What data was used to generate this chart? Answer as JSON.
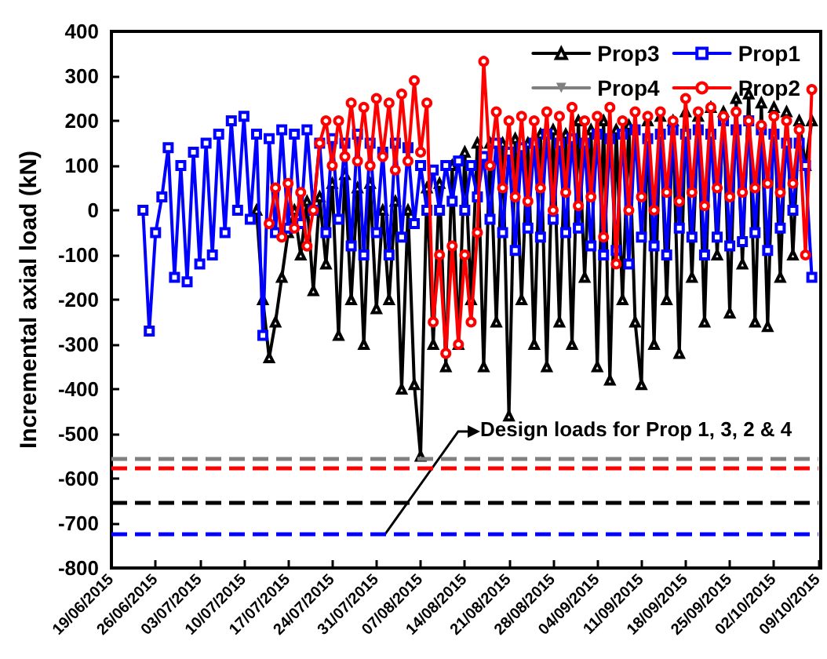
{
  "chart_data": {
    "type": "line",
    "ylabel": "Incremental axial load (kN)",
    "xlim": [
      "2015-06-19",
      "2015-10-09"
    ],
    "xticks": [
      {
        "value": "2015-06-19",
        "label": "19/06/2015"
      },
      {
        "value": "2015-06-26",
        "label": "26/06/2015"
      },
      {
        "value": "2015-07-03",
        "label": "03/07/2015"
      },
      {
        "value": "2015-07-10",
        "label": "10/07/2015"
      },
      {
        "value": "2015-07-17",
        "label": "17/07/2015"
      },
      {
        "value": "2015-07-24",
        "label": "24/07/2015"
      },
      {
        "value": "2015-07-31",
        "label": "31/07/2015"
      },
      {
        "value": "2015-08-07",
        "label": "07/08/2015"
      },
      {
        "value": "2015-08-14",
        "label": "14/08/2015"
      },
      {
        "value": "2015-08-21",
        "label": "21/08/2015"
      },
      {
        "value": "2015-08-28",
        "label": "28/08/2015"
      },
      {
        "value": "2015-09-04",
        "label": "04/09/2015"
      },
      {
        "value": "2015-09-11",
        "label": "11/09/2015"
      },
      {
        "value": "2015-09-18",
        "label": "18/09/2015"
      },
      {
        "value": "2015-09-25",
        "label": "25/09/2015"
      },
      {
        "value": "2015-10-02",
        "label": "02/10/2015"
      },
      {
        "value": "2015-10-09",
        "label": "09/10/2015"
      }
    ],
    "ylim": [
      -800,
      400
    ],
    "yticks": [
      -800,
      -700,
      -600,
      -500,
      -400,
      -300,
      -200,
      -100,
      0,
      100,
      200,
      300,
      400
    ],
    "grid": false,
    "legend": "top right",
    "line_style": "solid",
    "series": [
      {
        "name": "Prop3",
        "color": "#000000",
        "marker": "triangle",
        "x": [
          "2015-07-12",
          "2015-07-13",
          "2015-07-14",
          "2015-07-15",
          "2015-07-16",
          "2015-07-17",
          "2015-07-18",
          "2015-07-19",
          "2015-07-20",
          "2015-07-21",
          "2015-07-22",
          "2015-07-23",
          "2015-07-24",
          "2015-07-25",
          "2015-07-26",
          "2015-07-27",
          "2015-07-28",
          "2015-07-29",
          "2015-07-30",
          "2015-07-31",
          "2015-08-01",
          "2015-08-02",
          "2015-08-03",
          "2015-08-04",
          "2015-08-05",
          "2015-08-06",
          "2015-08-07",
          "2015-08-08",
          "2015-08-09",
          "2015-08-10",
          "2015-08-11",
          "2015-08-12",
          "2015-08-13",
          "2015-08-14",
          "2015-08-15",
          "2015-08-16",
          "2015-08-17",
          "2015-08-18",
          "2015-08-19",
          "2015-08-20",
          "2015-08-21",
          "2015-08-22",
          "2015-08-23",
          "2015-08-24",
          "2015-08-25",
          "2015-08-26",
          "2015-08-27",
          "2015-08-28",
          "2015-08-29",
          "2015-08-30",
          "2015-08-31",
          "2015-09-01",
          "2015-09-02",
          "2015-09-03",
          "2015-09-04",
          "2015-09-05",
          "2015-09-06",
          "2015-09-07",
          "2015-09-08",
          "2015-09-09",
          "2015-09-10",
          "2015-09-11",
          "2015-09-12",
          "2015-09-13",
          "2015-09-14",
          "2015-09-15",
          "2015-09-16",
          "2015-09-17",
          "2015-09-18",
          "2015-09-19",
          "2015-09-20",
          "2015-09-21",
          "2015-09-22",
          "2015-09-23",
          "2015-09-24",
          "2015-09-25",
          "2015-09-26",
          "2015-09-27",
          "2015-09-28",
          "2015-09-29",
          "2015-09-30",
          "2015-10-01",
          "2015-10-02",
          "2015-10-03",
          "2015-10-04",
          "2015-10-05",
          "2015-10-06",
          "2015-10-07",
          "2015-10-08"
        ],
        "values": [
          0,
          -200,
          -330,
          -250,
          -150,
          -50,
          0,
          -100,
          20,
          -180,
          30,
          -120,
          60,
          -280,
          80,
          -200,
          50,
          -300,
          60,
          -220,
          0,
          -200,
          20,
          -400,
          0,
          -390,
          -550,
          50,
          -300,
          60,
          -350,
          100,
          -300,
          130,
          -200,
          150,
          -350,
          150,
          -250,
          150,
          -460,
          160,
          -200,
          150,
          -300,
          170,
          -350,
          180,
          -250,
          170,
          -300,
          200,
          -150,
          180,
          -350,
          200,
          -380,
          180,
          -200,
          190,
          -250,
          -390,
          200,
          -300,
          210,
          -200,
          200,
          -320,
          220,
          -150,
          210,
          -250,
          230,
          -100,
          220,
          -230,
          250,
          -120,
          260,
          -250,
          240,
          -260,
          230,
          -150,
          220,
          -100,
          200,
          100,
          200
        ]
      },
      {
        "name": "Prop1",
        "color": "#0000ff",
        "marker": "square",
        "x": [
          "2015-06-24",
          "2015-06-25",
          "2015-06-26",
          "2015-06-27",
          "2015-06-28",
          "2015-06-29",
          "2015-06-30",
          "2015-07-01",
          "2015-07-02",
          "2015-07-03",
          "2015-07-04",
          "2015-07-05",
          "2015-07-06",
          "2015-07-07",
          "2015-07-08",
          "2015-07-09",
          "2015-07-10",
          "2015-07-11",
          "2015-07-12",
          "2015-07-13",
          "2015-07-14",
          "2015-07-15",
          "2015-07-16",
          "2015-07-17",
          "2015-07-18",
          "2015-07-19",
          "2015-07-20",
          "2015-07-21",
          "2015-07-22",
          "2015-07-23",
          "2015-07-24",
          "2015-07-25",
          "2015-07-26",
          "2015-07-27",
          "2015-07-28",
          "2015-07-29",
          "2015-07-30",
          "2015-07-31",
          "2015-08-01",
          "2015-08-02",
          "2015-08-03",
          "2015-08-04",
          "2015-08-05",
          "2015-08-06",
          "2015-08-07",
          "2015-08-08",
          "2015-08-09",
          "2015-08-10",
          "2015-08-11",
          "2015-08-12",
          "2015-08-13",
          "2015-08-14",
          "2015-08-15",
          "2015-08-16",
          "2015-08-17",
          "2015-08-18",
          "2015-08-19",
          "2015-08-20",
          "2015-08-21",
          "2015-08-22",
          "2015-08-23",
          "2015-08-24",
          "2015-08-25",
          "2015-08-26",
          "2015-08-27",
          "2015-08-28",
          "2015-08-29",
          "2015-08-30",
          "2015-08-31",
          "2015-09-01",
          "2015-09-02",
          "2015-09-03",
          "2015-09-04",
          "2015-09-05",
          "2015-09-06",
          "2015-09-07",
          "2015-09-08",
          "2015-09-09",
          "2015-09-10",
          "2015-09-11",
          "2015-09-12",
          "2015-09-13",
          "2015-09-14",
          "2015-09-15",
          "2015-09-16",
          "2015-09-17",
          "2015-09-18",
          "2015-09-19",
          "2015-09-20",
          "2015-09-21",
          "2015-09-22",
          "2015-09-23",
          "2015-09-24",
          "2015-09-25",
          "2015-09-26",
          "2015-09-27",
          "2015-09-28",
          "2015-09-29",
          "2015-09-30",
          "2015-10-01",
          "2015-10-02",
          "2015-10-03",
          "2015-10-04",
          "2015-10-05",
          "2015-10-06",
          "2015-10-07",
          "2015-10-08"
        ],
        "values": [
          0,
          -270,
          -50,
          30,
          140,
          -150,
          100,
          -160,
          130,
          -120,
          150,
          -100,
          170,
          -50,
          200,
          0,
          210,
          -20,
          170,
          -280,
          160,
          -50,
          180,
          -40,
          170,
          -30,
          180,
          0,
          150,
          -50,
          160,
          -20,
          150,
          -80,
          170,
          -100,
          150,
          -50,
          130,
          -100,
          150,
          -60,
          140,
          -30,
          100,
          0,
          90,
          0,
          100,
          20,
          110,
          0,
          100,
          30,
          120,
          -20,
          150,
          -50,
          130,
          -90,
          140,
          -40,
          150,
          -60,
          170,
          -20,
          150,
          -50,
          160,
          -40,
          150,
          -80,
          170,
          -100,
          160,
          -90,
          170,
          -120,
          180,
          -60,
          160,
          -80,
          170,
          -100,
          180,
          -40,
          170,
          -60,
          180,
          -100,
          170,
          -60,
          200,
          -80,
          180,
          -70,
          200,
          -50,
          180,
          -90,
          170,
          -40,
          150,
          0,
          150,
          100,
          -150
        ]
      },
      {
        "name": "Prop4",
        "color": "#808080",
        "marker": "triangle-down"
      },
      {
        "name": "Prop2",
        "color": "#ff0000",
        "marker": "circle",
        "x": [
          "2015-07-14",
          "2015-07-15",
          "2015-07-16",
          "2015-07-17",
          "2015-07-18",
          "2015-07-19",
          "2015-07-20",
          "2015-07-21",
          "2015-07-22",
          "2015-07-23",
          "2015-07-24",
          "2015-07-25",
          "2015-07-26",
          "2015-07-27",
          "2015-07-28",
          "2015-07-29",
          "2015-07-30",
          "2015-07-31",
          "2015-08-01",
          "2015-08-02",
          "2015-08-03",
          "2015-08-04",
          "2015-08-05",
          "2015-08-06",
          "2015-08-07",
          "2015-08-08",
          "2015-08-09",
          "2015-08-10",
          "2015-08-11",
          "2015-08-12",
          "2015-08-13",
          "2015-08-14",
          "2015-08-15",
          "2015-08-16",
          "2015-08-17",
          "2015-08-18",
          "2015-08-19",
          "2015-08-20",
          "2015-08-21",
          "2015-08-22",
          "2015-08-23",
          "2015-08-24",
          "2015-08-25",
          "2015-08-26",
          "2015-08-27",
          "2015-08-28",
          "2015-08-29",
          "2015-08-30",
          "2015-08-31",
          "2015-09-01",
          "2015-09-02",
          "2015-09-03",
          "2015-09-04",
          "2015-09-05",
          "2015-09-06",
          "2015-09-07",
          "2015-09-08",
          "2015-09-09",
          "2015-09-10",
          "2015-09-11",
          "2015-09-12",
          "2015-09-13",
          "2015-09-14",
          "2015-09-15",
          "2015-09-16",
          "2015-09-17",
          "2015-09-18",
          "2015-09-19",
          "2015-09-20",
          "2015-09-21",
          "2015-09-22",
          "2015-09-23",
          "2015-09-24",
          "2015-09-25",
          "2015-09-26",
          "2015-09-27",
          "2015-09-28",
          "2015-09-29",
          "2015-09-30",
          "2015-10-01",
          "2015-10-02",
          "2015-10-03",
          "2015-10-04",
          "2015-10-05",
          "2015-10-06",
          "2015-10-07",
          "2015-10-08"
        ],
        "values": [
          -30,
          50,
          -60,
          60,
          -40,
          40,
          -80,
          0,
          150,
          200,
          100,
          200,
          120,
          240,
          110,
          230,
          100,
          250,
          120,
          240,
          90,
          260,
          110,
          290,
          130,
          240,
          -250,
          -100,
          -320,
          -80,
          -300,
          -100,
          -250,
          -50,
          333,
          100,
          220,
          50,
          200,
          30,
          210,
          20,
          200,
          50,
          220,
          0,
          210,
          40,
          230,
          10,
          200,
          30,
          210,
          -60,
          230,
          -120,
          200,
          0,
          220,
          30,
          210,
          0,
          220,
          40,
          200,
          20,
          250,
          40,
          220,
          10,
          230,
          50,
          210,
          30,
          220,
          40,
          200,
          50,
          190,
          60,
          210,
          40,
          200,
          60,
          180,
          -100,
          270
        ]
      }
    ],
    "ref_lines": [
      {
        "axis": "y",
        "value": -555,
        "color": "#808080",
        "line_style": "dashed"
      },
      {
        "axis": "y",
        "value": -575,
        "color": "#ff0000",
        "line_style": "dashed"
      },
      {
        "axis": "y",
        "value": -655,
        "color": "#000000",
        "line_style": "dashed"
      },
      {
        "axis": "y",
        "value": -725,
        "color": "#0000ff",
        "line_style": "dashed"
      }
    ],
    "annotations": [
      "Design loads for Prop 1, 3, 2 & 4"
    ]
  }
}
